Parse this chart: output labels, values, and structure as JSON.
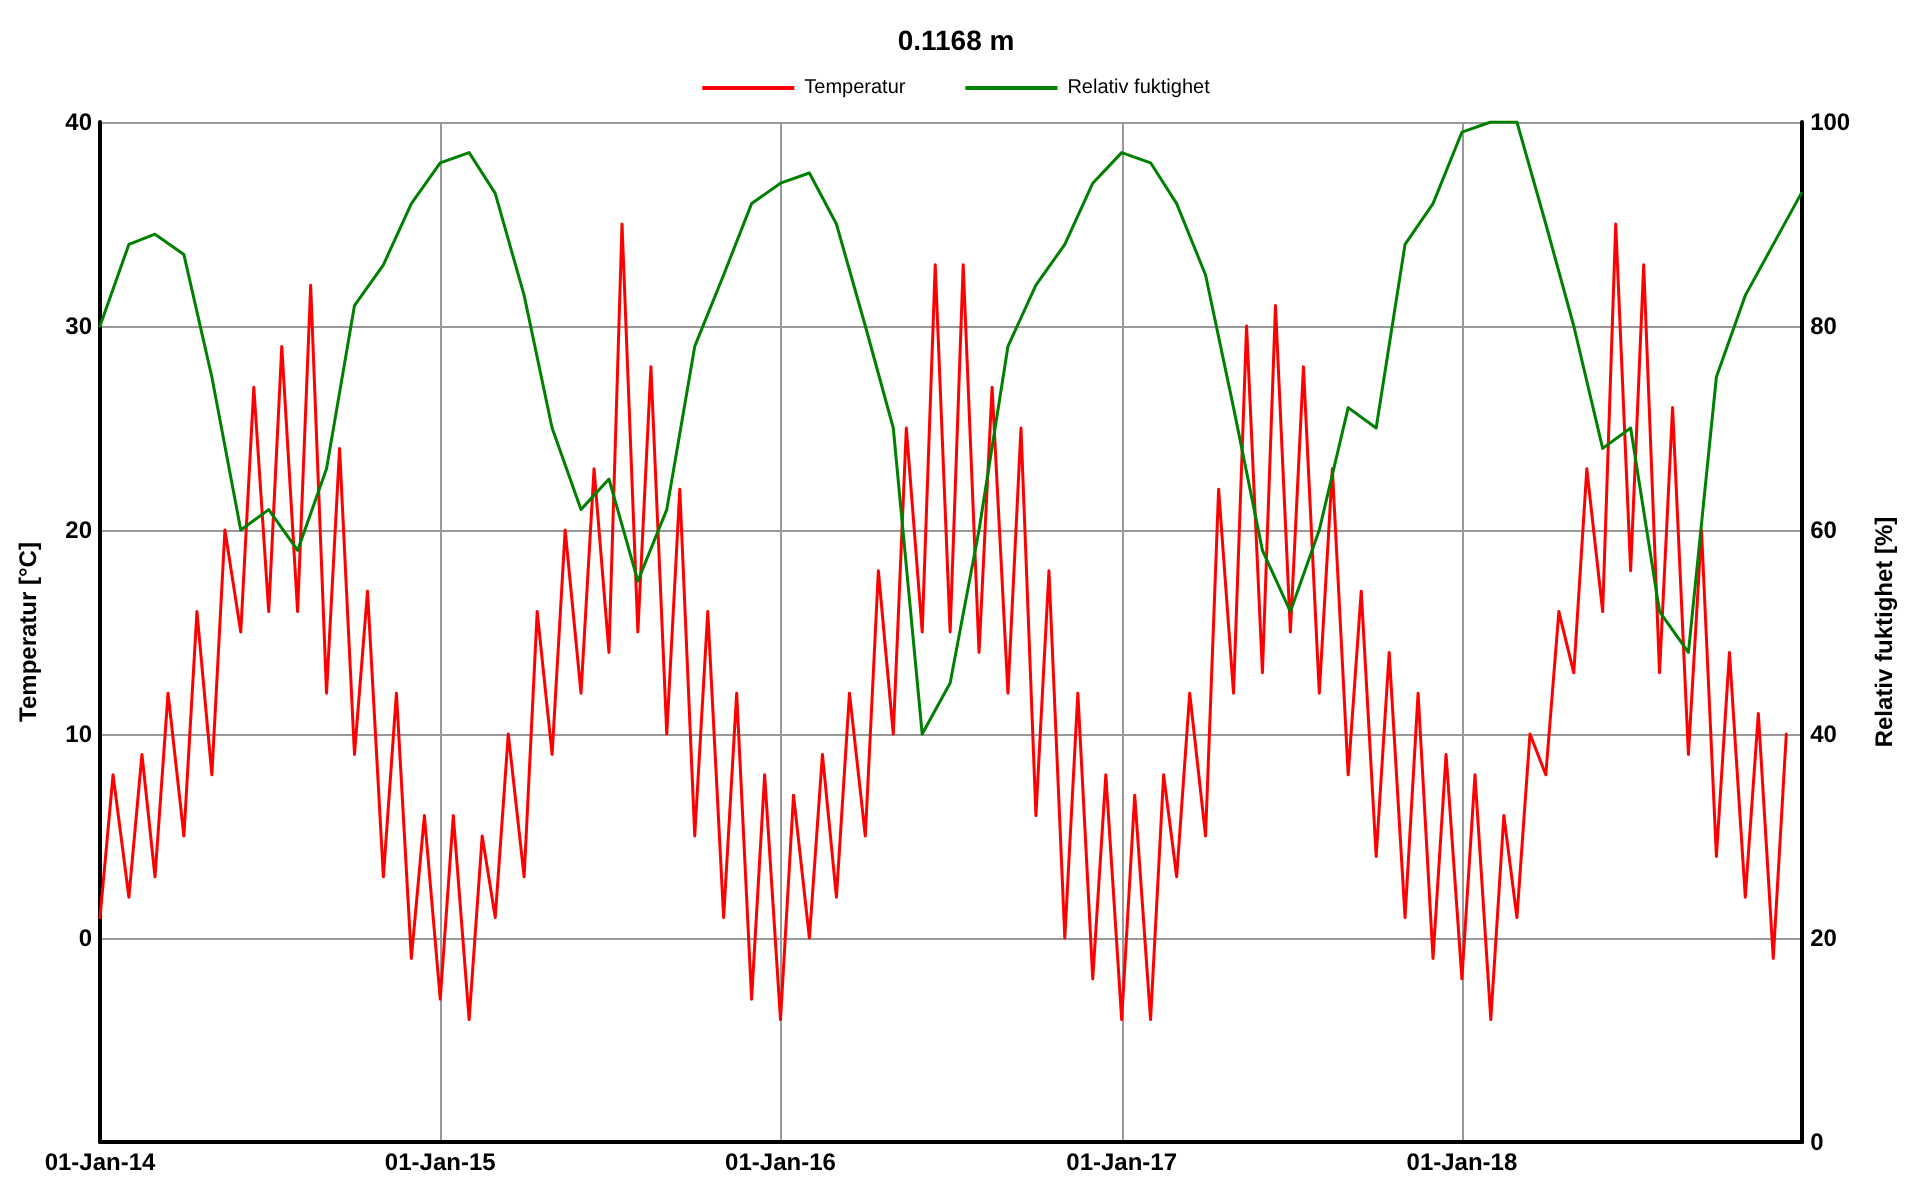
{
  "chart_data": {
    "type": "line",
    "title": "0.1168 m",
    "ylabel": "Temperatur [°C]",
    "y2label": "Relativ fuktighet [%]",
    "xlim": [
      "2014-01-01",
      "2019-01-01"
    ],
    "xticks": [
      {
        "value": "2014-01-01",
        "label": "01-Jan-14"
      },
      {
        "value": "2015-01-01",
        "label": "01-Jan-15"
      },
      {
        "value": "2016-01-01",
        "label": "01-Jan-16"
      },
      {
        "value": "2017-01-01",
        "label": "01-Jan-17"
      },
      {
        "value": "2018-01-01",
        "label": "01-Jan-18"
      }
    ],
    "ylim": [
      -10,
      40
    ],
    "yticks": [
      {
        "value": -10,
        "label": null
      },
      0,
      10,
      20,
      30,
      40
    ],
    "y2lim": [
      0,
      100
    ],
    "y2ticks": [
      0,
      20,
      40,
      60,
      80,
      100
    ],
    "grid": true,
    "legend": "top",
    "marker": "none",
    "line_style": "solid",
    "series": [
      {
        "name": "Temperatur",
        "color": "#ff0000",
        "x": [
          "2014-01-01",
          "2014-01-15",
          "2014-02-01",
          "2014-02-15",
          "2014-03-01",
          "2014-03-15",
          "2014-04-01",
          "2014-04-15",
          "2014-05-01",
          "2014-05-15",
          "2014-06-01",
          "2014-06-15",
          "2014-07-01",
          "2014-07-15",
          "2014-08-01",
          "2014-08-15",
          "2014-09-01",
          "2014-09-15",
          "2014-10-01",
          "2014-10-15",
          "2014-11-01",
          "2014-11-15",
          "2014-12-01",
          "2014-12-15",
          "2015-01-01",
          "2015-01-15",
          "2015-02-01",
          "2015-02-15",
          "2015-03-01",
          "2015-03-15",
          "2015-04-01",
          "2015-04-15",
          "2015-05-01",
          "2015-05-15",
          "2015-06-01",
          "2015-06-15",
          "2015-07-01",
          "2015-07-15",
          "2015-08-01",
          "2015-08-15",
          "2015-09-01",
          "2015-09-15",
          "2015-10-01",
          "2015-10-15",
          "2015-11-01",
          "2015-11-15",
          "2015-12-01",
          "2015-12-15",
          "2016-01-01",
          "2016-01-15",
          "2016-02-01",
          "2016-02-15",
          "2016-03-01",
          "2016-03-15",
          "2016-04-01",
          "2016-04-15",
          "2016-05-01",
          "2016-05-15",
          "2016-06-01",
          "2016-06-15",
          "2016-07-01",
          "2016-07-15",
          "2016-08-01",
          "2016-08-15",
          "2016-09-01",
          "2016-09-15",
          "2016-10-01",
          "2016-10-15",
          "2016-11-01",
          "2016-11-15",
          "2016-12-01",
          "2016-12-15",
          "2017-01-01",
          "2017-01-15",
          "2017-02-01",
          "2017-02-15",
          "2017-03-01",
          "2017-03-15",
          "2017-04-01",
          "2017-04-15",
          "2017-05-01",
          "2017-05-15",
          "2017-06-01",
          "2017-06-15",
          "2017-07-01",
          "2017-07-15",
          "2017-08-01",
          "2017-08-15",
          "2017-09-01",
          "2017-09-15",
          "2017-10-01",
          "2017-10-15",
          "2017-11-01",
          "2017-11-15",
          "2017-12-01",
          "2017-12-15",
          "2018-01-01",
          "2018-01-15",
          "2018-02-01",
          "2018-02-15",
          "2018-03-01",
          "2018-03-15",
          "2018-04-01",
          "2018-04-15",
          "2018-05-01",
          "2018-05-15",
          "2018-06-01",
          "2018-06-15",
          "2018-07-01",
          "2018-07-15",
          "2018-08-01",
          "2018-08-15",
          "2018-09-01",
          "2018-09-15",
          "2018-10-01",
          "2018-10-15",
          "2018-11-01",
          "2018-11-15",
          "2018-12-01",
          "2018-12-15"
        ],
        "values": [
          1,
          8,
          2,
          9,
          3,
          12,
          5,
          16,
          8,
          20,
          15,
          27,
          16,
          29,
          16,
          32,
          12,
          24,
          9,
          17,
          3,
          12,
          -1,
          6,
          -3,
          6,
          -4,
          5,
          1,
          10,
          3,
          16,
          9,
          20,
          12,
          23,
          14,
          35,
          15,
          28,
          10,
          22,
          5,
          16,
          1,
          12,
          -3,
          8,
          -4,
          7,
          0,
          9,
          2,
          12,
          5,
          18,
          10,
          25,
          15,
          33,
          15,
          33,
          14,
          27,
          12,
          25,
          6,
          18,
          0,
          12,
          -2,
          8,
          -4,
          7,
          -4,
          8,
          3,
          12,
          5,
          22,
          12,
          30,
          13,
          31,
          15,
          28,
          12,
          23,
          8,
          17,
          4,
          14,
          1,
          12,
          -1,
          9,
          -2,
          8,
          -4,
          6,
          1,
          10,
          8,
          16,
          13,
          23,
          16,
          35,
          18,
          33,
          13,
          26,
          9,
          20,
          4,
          14,
          2,
          11,
          -1,
          10
        ]
      },
      {
        "name": "Relativ fuktighet",
        "color": "#008000",
        "axis": "y2",
        "x": [
          "2014-01-01",
          "2014-02-01",
          "2014-03-01",
          "2014-04-01",
          "2014-05-01",
          "2014-06-01",
          "2014-07-01",
          "2014-08-01",
          "2014-09-01",
          "2014-10-01",
          "2014-11-01",
          "2014-12-01",
          "2015-01-01",
          "2015-02-01",
          "2015-03-01",
          "2015-04-01",
          "2015-05-01",
          "2015-06-01",
          "2015-07-01",
          "2015-08-01",
          "2015-09-01",
          "2015-10-01",
          "2015-11-01",
          "2015-12-01",
          "2016-01-01",
          "2016-02-01",
          "2016-03-01",
          "2016-04-01",
          "2016-05-01",
          "2016-06-01",
          "2016-07-01",
          "2016-08-01",
          "2016-09-01",
          "2016-10-01",
          "2016-11-01",
          "2016-12-01",
          "2017-01-01",
          "2017-02-01",
          "2017-03-01",
          "2017-04-01",
          "2017-05-01",
          "2017-06-01",
          "2017-07-01",
          "2017-08-01",
          "2017-09-01",
          "2017-10-01",
          "2017-11-01",
          "2017-12-01",
          "2018-01-01",
          "2018-02-01",
          "2018-03-01",
          "2018-04-01",
          "2018-05-01",
          "2018-06-01",
          "2018-07-01",
          "2018-08-01",
          "2018-09-01",
          "2018-10-01",
          "2018-11-01",
          "2018-12-01",
          "2018-12-31"
        ],
        "values": [
          80,
          88,
          89,
          87,
          75,
          60,
          62,
          58,
          66,
          82,
          86,
          92,
          96,
          97,
          93,
          83,
          70,
          62,
          65,
          55,
          62,
          78,
          85,
          92,
          94,
          95,
          90,
          80,
          70,
          40,
          45,
          60,
          78,
          84,
          88,
          94,
          97,
          96,
          92,
          85,
          72,
          58,
          52,
          60,
          72,
          70,
          88,
          92,
          99,
          100,
          100,
          90,
          80,
          68,
          70,
          52,
          48,
          75,
          83,
          88,
          93
        ]
      }
    ]
  }
}
